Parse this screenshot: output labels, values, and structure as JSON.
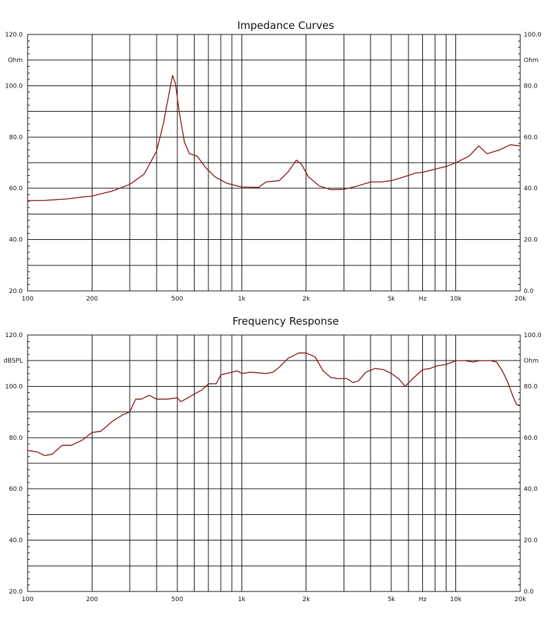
{
  "chart_data": [
    {
      "type": "line",
      "title": "Impedance Curves",
      "x_scale": "log",
      "xlim": [
        100,
        20000
      ],
      "x_ticks": [
        100,
        200,
        500,
        1000,
        2000,
        5000,
        7000,
        10000,
        20000
      ],
      "x_tick_labels": [
        "100",
        "200",
        "500",
        "1k",
        "2k",
        "5k",
        "Hz",
        "10k",
        "20k"
      ],
      "x_grid": [
        100,
        200,
        300,
        400,
        500,
        600,
        700,
        800,
        900,
        1000,
        2000,
        3000,
        4000,
        5000,
        6000,
        7000,
        8000,
        9000,
        10000,
        20000
      ],
      "left_unit": "Ohm",
      "left_ylim": [
        20,
        120
      ],
      "left_tick_labels": [
        "120.0",
        "100.0",
        "80.0",
        "60.0",
        "40.0",
        "20.0"
      ],
      "right_unit": "Ohm",
      "right_ylim": [
        0,
        100
      ],
      "right_tick_labels": [
        "100.0",
        "80.0",
        "60.0",
        "40.0",
        "20.0",
        "0.0"
      ],
      "grid": true,
      "series": [
        {
          "color": "#8b1a1a",
          "points": [
            [
              100,
              55.2
            ],
            [
              120,
              55.3
            ],
            [
              150,
              55.8
            ],
            [
              180,
              56.6
            ],
            [
              200,
              57.0
            ],
            [
              250,
              59.0
            ],
            [
              300,
              61.5
            ],
            [
              350,
              65.5
            ],
            [
              400,
              74.5
            ],
            [
              430,
              85.0
            ],
            [
              460,
              98.0
            ],
            [
              475,
              104.0
            ],
            [
              490,
              101.0
            ],
            [
              510,
              90.0
            ],
            [
              540,
              78.0
            ],
            [
              570,
              73.5
            ],
            [
              620,
              72.5
            ],
            [
              680,
              68.0
            ],
            [
              750,
              64.5
            ],
            [
              850,
              62.0
            ],
            [
              1000,
              60.5
            ],
            [
              1200,
              60.4
            ],
            [
              1300,
              62.5
            ],
            [
              1500,
              63.0
            ],
            [
              1650,
              66.5
            ],
            [
              1800,
              71.0
            ],
            [
              1900,
              69.5
            ],
            [
              2050,
              64.5
            ],
            [
              2300,
              61.0
            ],
            [
              2600,
              59.5
            ],
            [
              3000,
              59.6
            ],
            [
              3500,
              61.0
            ],
            [
              4000,
              62.5
            ],
            [
              4500,
              62.5
            ],
            [
              5000,
              63.0
            ],
            [
              5500,
              64.0
            ],
            [
              6000,
              65.0
            ],
            [
              6500,
              66.0
            ],
            [
              7000,
              66.2
            ],
            [
              8000,
              67.5
            ],
            [
              9000,
              68.5
            ],
            [
              10000,
              70.0
            ],
            [
              11500,
              72.5
            ],
            [
              12800,
              76.5
            ],
            [
              14000,
              73.5
            ],
            [
              16000,
              75.0
            ],
            [
              18000,
              77.0
            ],
            [
              20000,
              76.5
            ]
          ]
        }
      ]
    },
    {
      "type": "line",
      "title": "Frequency Response",
      "x_scale": "log",
      "xlim": [
        100,
        20000
      ],
      "x_ticks": [
        100,
        200,
        500,
        1000,
        2000,
        5000,
        7000,
        10000,
        20000
      ],
      "x_tick_labels": [
        "100",
        "200",
        "500",
        "1k",
        "2k",
        "5k",
        "Hz",
        "10k",
        "20k"
      ],
      "x_grid": [
        100,
        200,
        300,
        400,
        500,
        600,
        700,
        800,
        900,
        1000,
        2000,
        3000,
        4000,
        5000,
        6000,
        7000,
        8000,
        9000,
        10000,
        20000
      ],
      "left_unit": "dBSPL",
      "left_ylim": [
        20,
        120
      ],
      "left_tick_labels": [
        "120.0",
        "100.0",
        "80.0",
        "60.0",
        "40.0",
        "20.0"
      ],
      "right_unit": "Ohm",
      "right_ylim": [
        0,
        100
      ],
      "right_tick_labels": [
        "100.0",
        "80.0",
        "60.0",
        "40.0",
        "20.0",
        "0.0"
      ],
      "grid": true,
      "series": [
        {
          "color": "#8b1a1a",
          "points": [
            [
              100,
              75.0
            ],
            [
              110,
              74.5
            ],
            [
              120,
              73.0
            ],
            [
              130,
              73.5
            ],
            [
              145,
              77.0
            ],
            [
              160,
              77.0
            ],
            [
              180,
              79.0
            ],
            [
              200,
              82.0
            ],
            [
              220,
              82.5
            ],
            [
              250,
              86.5
            ],
            [
              280,
              89.0
            ],
            [
              300,
              90.0
            ],
            [
              320,
              95.0
            ],
            [
              340,
              95.0
            ],
            [
              370,
              96.5
            ],
            [
              400,
              95.0
            ],
            [
              450,
              95.0
            ],
            [
              500,
              95.5
            ],
            [
              520,
              94.0
            ],
            [
              560,
              95.5
            ],
            [
              600,
              97.0
            ],
            [
              650,
              98.5
            ],
            [
              700,
              101.0
            ],
            [
              760,
              101.0
            ],
            [
              800,
              104.5
            ],
            [
              850,
              105.0
            ],
            [
              950,
              106.0
            ],
            [
              1000,
              105.0
            ],
            [
              1100,
              105.5
            ],
            [
              1300,
              105.0
            ],
            [
              1400,
              105.5
            ],
            [
              1500,
              107.5
            ],
            [
              1650,
              111.0
            ],
            [
              1850,
              113.0
            ],
            [
              2000,
              113.0
            ],
            [
              2200,
              111.5
            ],
            [
              2400,
              106.0
            ],
            [
              2600,
              103.5
            ],
            [
              2800,
              103.0
            ],
            [
              3100,
              103.0
            ],
            [
              3300,
              101.5
            ],
            [
              3500,
              102.0
            ],
            [
              3800,
              105.5
            ],
            [
              4200,
              107.0
            ],
            [
              4600,
              106.5
            ],
            [
              5000,
              105.0
            ],
            [
              5400,
              103.0
            ],
            [
              5800,
              100.0
            ],
            [
              6300,
              103.0
            ],
            [
              7000,
              106.5
            ],
            [
              7600,
              107.0
            ],
            [
              8200,
              108.0
            ],
            [
              9000,
              108.5
            ],
            [
              10000,
              110.0
            ],
            [
              11000,
              110.0
            ],
            [
              12000,
              109.5
            ],
            [
              13000,
              110.0
            ],
            [
              14500,
              110.0
            ],
            [
              15500,
              109.5
            ],
            [
              16500,
              106.0
            ],
            [
              17500,
              101.5
            ],
            [
              18500,
              96.0
            ],
            [
              19200,
              93.0
            ],
            [
              20000,
              92.5
            ]
          ]
        }
      ]
    }
  ]
}
